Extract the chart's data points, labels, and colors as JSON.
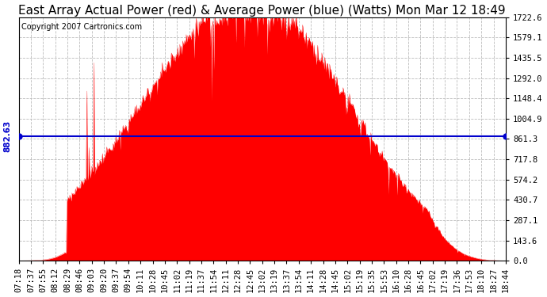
{
  "title": "East Array Actual Power (red) & Average Power (blue) (Watts) Mon Mar 12 18:49",
  "copyright": "Copyright 2007 Cartronics.com",
  "average_power": 882.63,
  "y_max": 1722.6,
  "y_ticks": [
    0.0,
    143.6,
    287.1,
    430.7,
    574.2,
    717.8,
    861.3,
    1004.9,
    1148.4,
    1292.0,
    1435.5,
    1579.1,
    1722.6
  ],
  "x_labels": [
    "07:18",
    "07:37",
    "07:55",
    "08:12",
    "08:29",
    "08:46",
    "09:03",
    "09:20",
    "09:37",
    "09:54",
    "10:11",
    "10:28",
    "10:45",
    "11:02",
    "11:19",
    "11:37",
    "11:54",
    "12:11",
    "12:28",
    "12:45",
    "13:02",
    "13:19",
    "13:37",
    "13:54",
    "14:11",
    "14:28",
    "14:45",
    "15:02",
    "15:19",
    "15:35",
    "15:53",
    "16:10",
    "16:28",
    "16:45",
    "17:02",
    "17:19",
    "17:36",
    "17:53",
    "18:10",
    "18:27",
    "18:44"
  ],
  "background_color": "#ffffff",
  "plot_bg_color": "#ffffff",
  "grid_color": "#bbbbbb",
  "fill_color": "#ff0000",
  "line_color": "#0000cc",
  "title_fontsize": 11,
  "tick_fontsize": 7.5,
  "copyright_fontsize": 7
}
